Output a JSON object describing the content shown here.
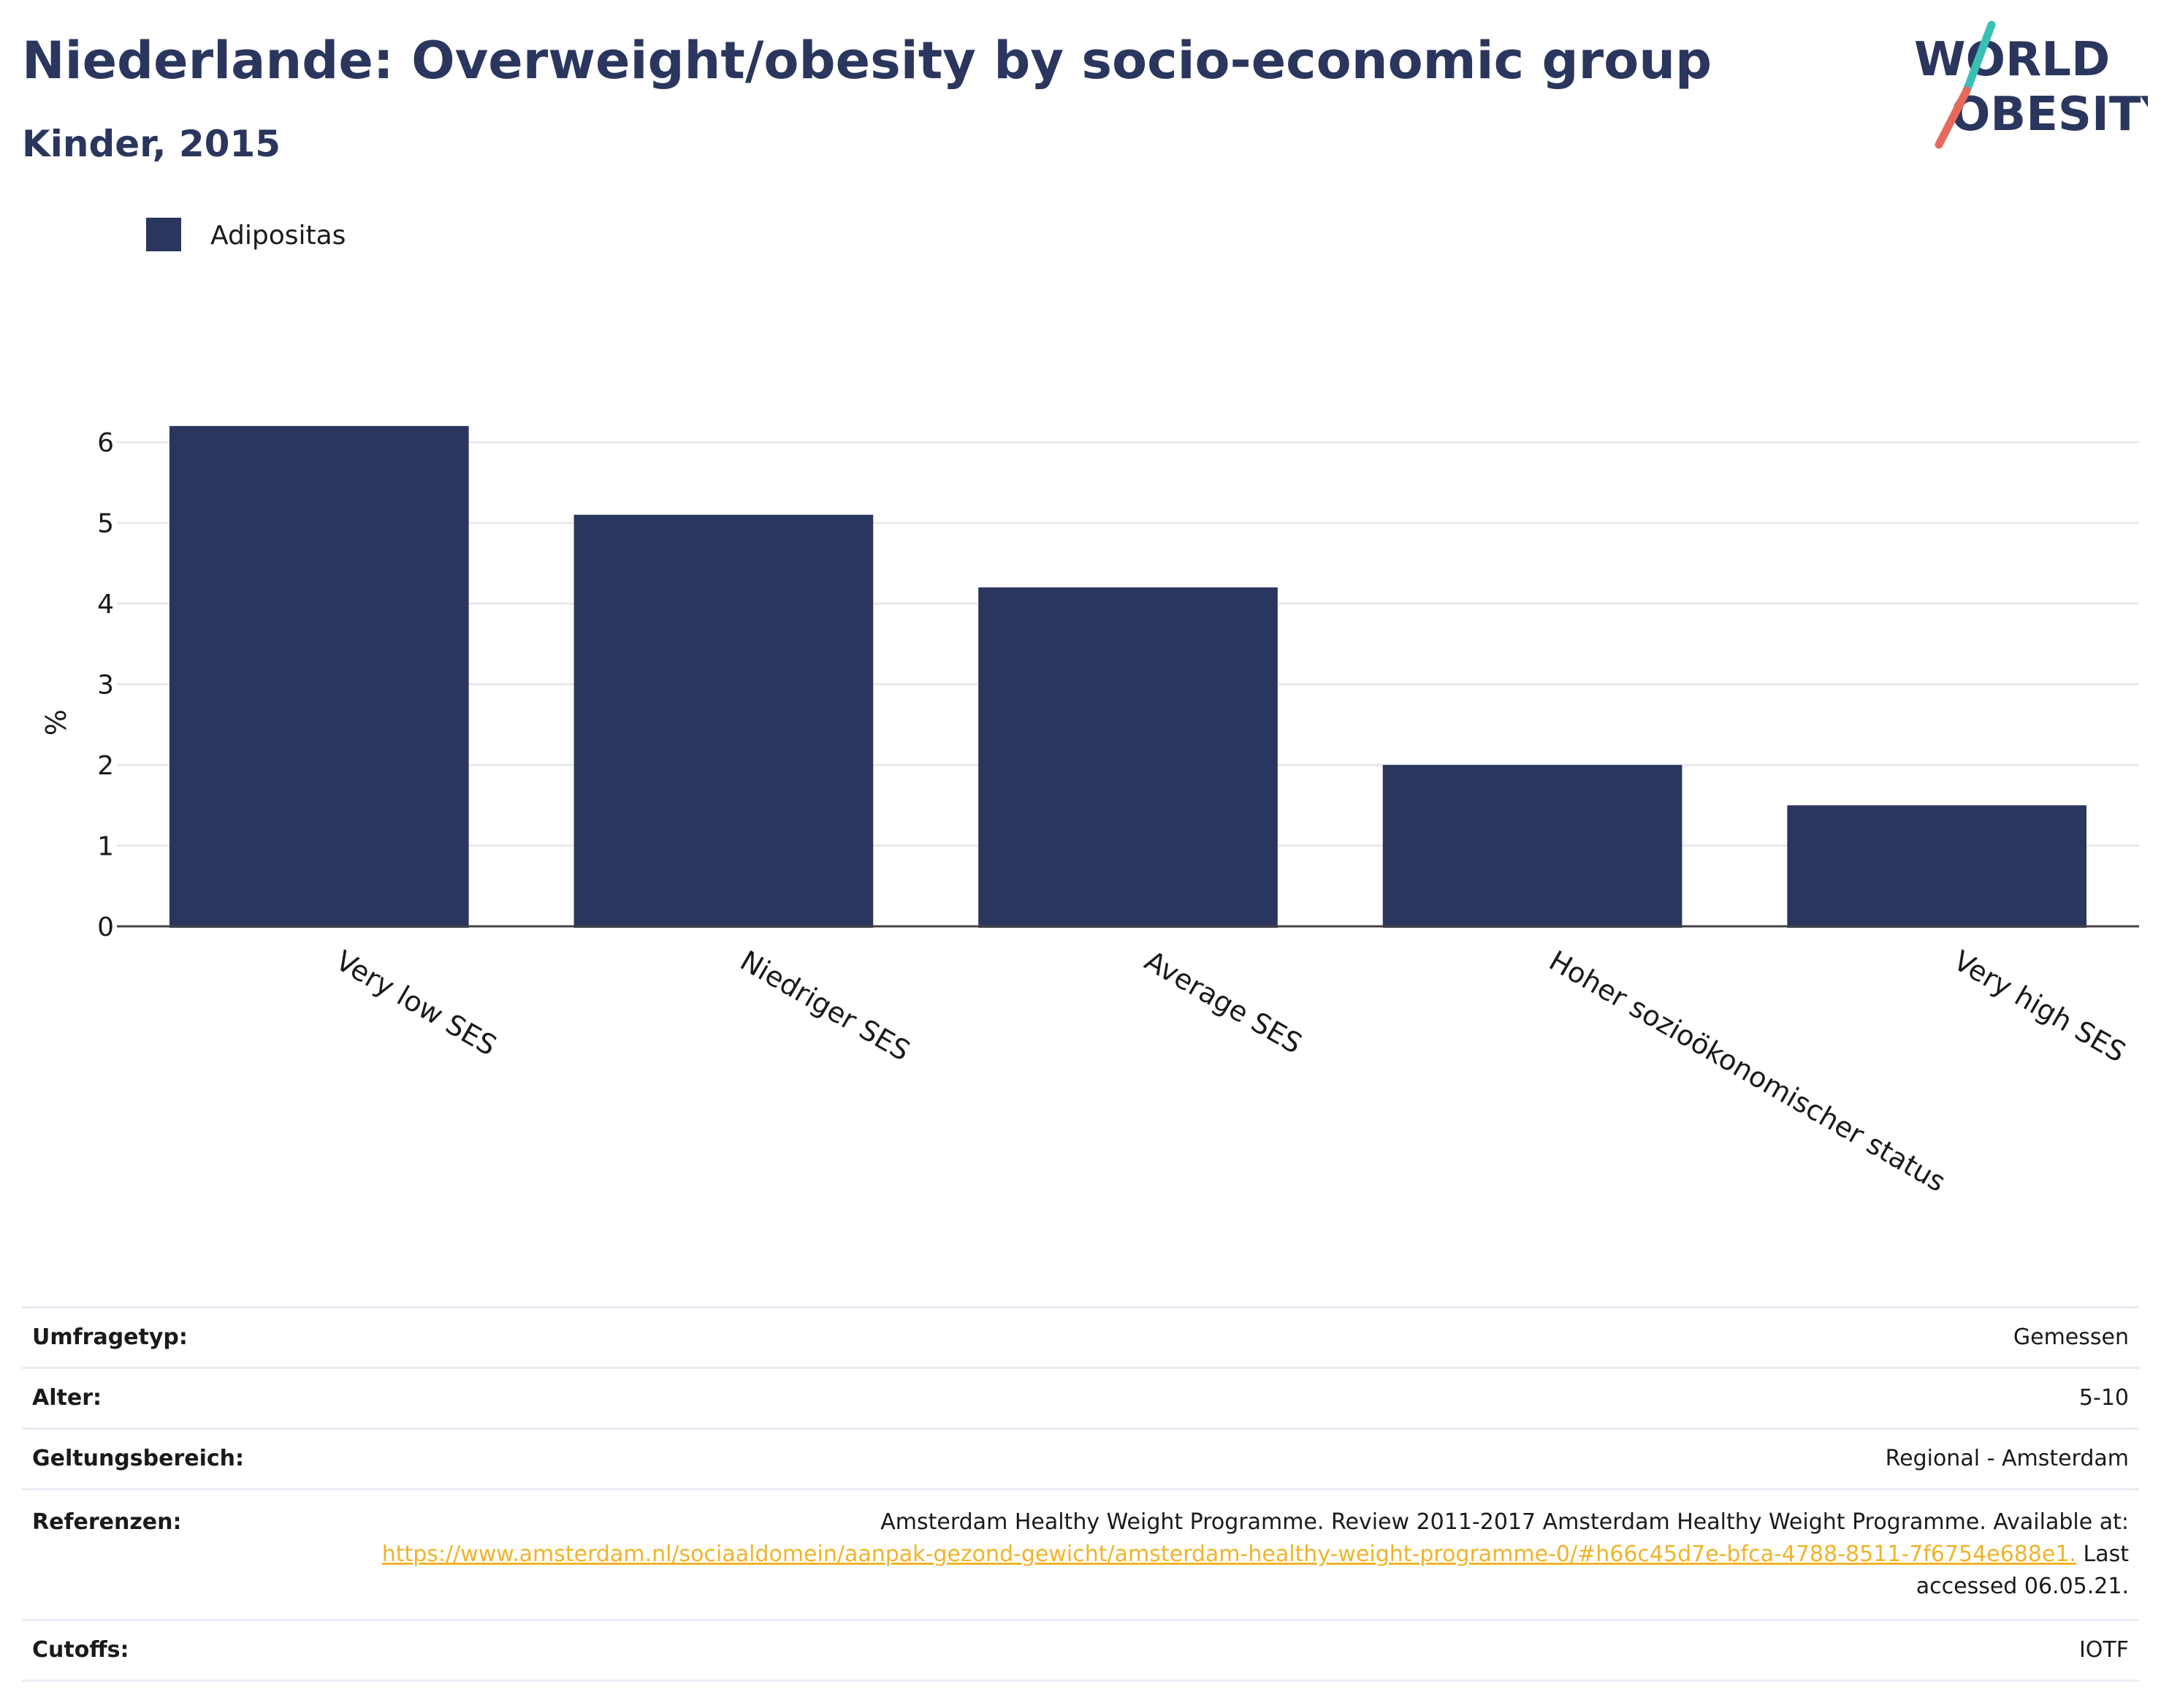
{
  "title": "Niederlande: Overweight/obesity by socio-economic group",
  "subtitle": "Kinder, 2015",
  "logo": {
    "line1": "WORLD",
    "line2": "OBESITY",
    "accent_teal": "#3bbfb5",
    "accent_coral": "#e8695b"
  },
  "colors": {
    "bar": "#2b365e",
    "grid": "#e8e8ef",
    "axis": "#444444",
    "title": "#2b365e",
    "link": "#f0b429"
  },
  "chart_data": {
    "type": "bar",
    "categories": [
      "Very low SES",
      "Niedriger SES",
      "Average SES",
      "Hoher sozioökonomischer status",
      "Very high SES"
    ],
    "series": [
      {
        "name": "Adipositas",
        "values": [
          6.2,
          5.1,
          4.2,
          2.0,
          1.5
        ]
      }
    ],
    "ylabel": "%",
    "ylim": [
      0,
      6.5
    ],
    "yticks": [
      0,
      1,
      2,
      3,
      4,
      5,
      6
    ],
    "grid": true,
    "legend": "top-left"
  },
  "metadata": {
    "survey_type_label": "Umfragetyp:",
    "survey_type": "Gemessen",
    "age_label": "Alter:",
    "age": "5-10",
    "scope_label": "Geltungsbereich:",
    "scope": "Regional - Amsterdam",
    "references_label": "Referenzen:",
    "references_text": "Amsterdam Healthy Weight Programme. Review 2011-2017 Amsterdam Healthy Weight Programme. Available at:",
    "references_link": "https://www.amsterdam.nl/sociaaldomein/aanpak-gezond-gewicht/amsterdam-healthy-weight-programme-0/#h66c45d7e-bfca-4788-8511-7f6754e688e1.",
    "references_suffix": "Last accessed 06.05.21.",
    "cutoffs_label": "Cutoffs:",
    "cutoffs": "IOTF"
  }
}
